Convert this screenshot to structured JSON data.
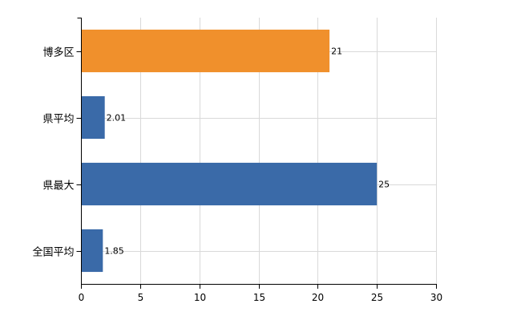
{
  "chart_data": {
    "type": "bar",
    "orientation": "horizontal",
    "categories": [
      "博多区",
      "県平均",
      "県最大",
      "全国平均"
    ],
    "values": [
      21,
      2.01,
      25,
      1.85
    ],
    "data_labels": [
      "21",
      "2.01",
      "25",
      "1.85"
    ],
    "bar_colors": [
      "#f0902c",
      "#3a6aa8",
      "#3a6aa8",
      "#3a6aa8"
    ],
    "title": "",
    "xlabel": "",
    "ylabel": "",
    "xlim": [
      0,
      30
    ],
    "x_ticks": [
      0,
      5,
      10,
      15,
      20,
      25,
      30
    ],
    "x_tick_labels": [
      "0",
      "5",
      "10",
      "15",
      "20",
      "25",
      "30"
    ],
    "grid": true,
    "legend": "none"
  }
}
